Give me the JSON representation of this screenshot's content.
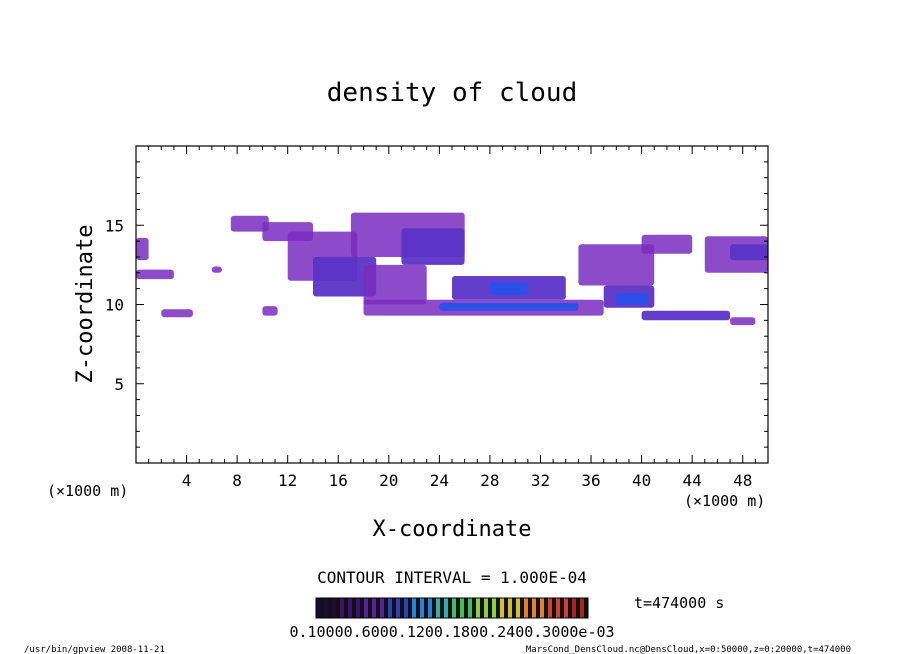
{
  "chart_data": {
    "type": "heatmap",
    "title": "density of cloud",
    "xlabel": "X-coordinate",
    "ylabel": "Z-coordinate",
    "x_unit": "(×1000 m)",
    "z_unit": "(×1000 m)",
    "xlim": [
      0,
      50
    ],
    "ylim": [
      0,
      20
    ],
    "xticks": [
      4,
      8,
      12,
      16,
      20,
      24,
      28,
      32,
      36,
      40,
      44,
      48
    ],
    "yticks": [
      5,
      10,
      15
    ],
    "contour_interval_text": "CONTOUR INTERVAL = 1.000E-04",
    "time_text": "t=474000 s",
    "colorbar_labels_text": "0.10000.6000.1200.1800.2400.3000e-03",
    "colorbar_levels": [
      0.1,
      0.6,
      1.2,
      1.8,
      2.4,
      3.0
    ],
    "colorbar_colors": [
      "#1b0a3a",
      "#3a1070",
      "#5a1ea0",
      "#3040c0",
      "#2a80e0",
      "#30b0b0",
      "#40c060",
      "#90d040",
      "#d0c030",
      "#e08030",
      "#d04030",
      "#b02020"
    ],
    "footer_left": "/usr/bin/gpview  2008-11-21",
    "footer_right": "MarsCond_DensCloud.nc@DensCloud,x=0:50000,z=0:20000,t=474000",
    "cloud_regions": [
      {
        "x": [
          0.0,
          1.0
        ],
        "z": [
          12.8,
          14.2
        ],
        "level": "low"
      },
      {
        "x": [
          0.0,
          3.0
        ],
        "z": [
          11.6,
          12.2
        ],
        "level": "low"
      },
      {
        "x": [
          7.5,
          10.5
        ],
        "z": [
          14.6,
          15.6
        ],
        "level": "low"
      },
      {
        "x": [
          10.0,
          14.0
        ],
        "z": [
          14.0,
          15.2
        ],
        "level": "low"
      },
      {
        "x": [
          12.0,
          17.5
        ],
        "z": [
          11.5,
          14.6
        ],
        "level": "low"
      },
      {
        "x": [
          14.0,
          19.0
        ],
        "z": [
          10.5,
          13.0
        ],
        "level": "mid"
      },
      {
        "x": [
          17.0,
          26.0
        ],
        "z": [
          13.0,
          15.8
        ],
        "level": "low"
      },
      {
        "x": [
          21.0,
          26.0
        ],
        "z": [
          12.5,
          14.8
        ],
        "level": "mid"
      },
      {
        "x": [
          18.0,
          23.0
        ],
        "z": [
          10.0,
          12.5
        ],
        "level": "low"
      },
      {
        "x": [
          18.0,
          37.0
        ],
        "z": [
          9.3,
          10.3
        ],
        "level": "low"
      },
      {
        "x": [
          24.0,
          35.0
        ],
        "z": [
          9.6,
          10.1
        ],
        "level": "high"
      },
      {
        "x": [
          25.0,
          34.0
        ],
        "z": [
          10.3,
          11.8
        ],
        "level": "mid"
      },
      {
        "x": [
          28.0,
          31.0
        ],
        "z": [
          10.6,
          11.4
        ],
        "level": "high"
      },
      {
        "x": [
          35.0,
          41.0
        ],
        "z": [
          11.2,
          13.8
        ],
        "level": "low"
      },
      {
        "x": [
          37.0,
          41.0
        ],
        "z": [
          9.8,
          11.2
        ],
        "level": "mid"
      },
      {
        "x": [
          38.0,
          40.5
        ],
        "z": [
          10.0,
          10.7
        ],
        "level": "high"
      },
      {
        "x": [
          40.0,
          44.0
        ],
        "z": [
          13.2,
          14.4
        ],
        "level": "low"
      },
      {
        "x": [
          40.0,
          47.0
        ],
        "z": [
          9.0,
          9.6
        ],
        "level": "mid"
      },
      {
        "x": [
          45.0,
          50.0
        ],
        "z": [
          12.0,
          14.3
        ],
        "level": "low"
      },
      {
        "x": [
          47.0,
          50.0
        ],
        "z": [
          12.8,
          13.8
        ],
        "level": "mid"
      },
      {
        "x": [
          2.0,
          4.5
        ],
        "z": [
          9.2,
          9.7
        ],
        "level": "low"
      },
      {
        "x": [
          10.0,
          11.2
        ],
        "z": [
          9.3,
          9.9
        ],
        "level": "low"
      },
      {
        "x": [
          6.0,
          6.8
        ],
        "z": [
          12.0,
          12.4
        ],
        "level": "low"
      },
      {
        "x": [
          47.0,
          49.0
        ],
        "z": [
          8.7,
          9.2
        ],
        "level": "low"
      }
    ],
    "grid": false,
    "legend": "bottom colorbar"
  }
}
